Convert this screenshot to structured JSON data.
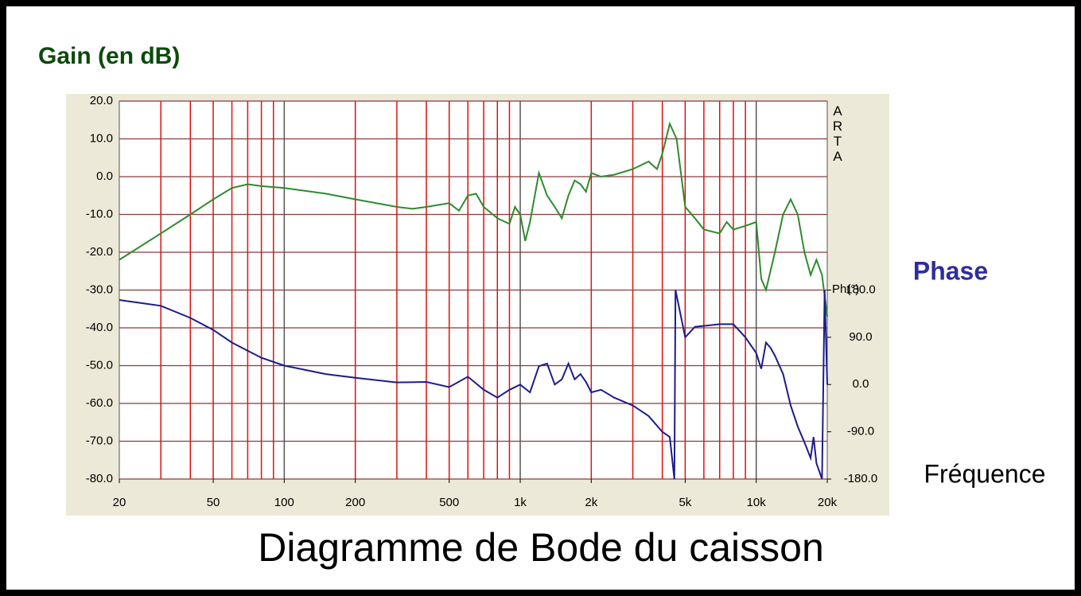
{
  "chart_data": {
    "type": "line",
    "title": "Diagramme de Bode du caisson",
    "xlabel": "Fréquence",
    "y2label": "Ph(°)",
    "annotation": "ARTA",
    "xscale": "log",
    "grid": true,
    "xlim": [
      20,
      20000
    ],
    "ylim": [
      -80,
      20
    ],
    "y2lim": [
      -180,
      540
    ],
    "xticks": [
      20,
      50,
      100,
      200,
      500,
      {
        "value": 1000,
        "label": "1k"
      },
      {
        "value": 2000,
        "label": "2k"
      },
      {
        "value": 5000,
        "label": "5k"
      },
      {
        "value": 10000,
        "label": "10k"
      },
      {
        "value": 20000,
        "label": "20k"
      }
    ],
    "yticks": [
      {
        "value": -80,
        "label": "-80.0"
      },
      {
        "value": -70,
        "label": "-70.0"
      },
      {
        "value": -60,
        "label": "-60.0"
      },
      {
        "value": -50,
        "label": "-50.0"
      },
      {
        "value": -40,
        "label": "-40.0"
      },
      {
        "value": -30,
        "label": "-30.0"
      },
      {
        "value": -20,
        "label": "-20.0"
      },
      {
        "value": -10,
        "label": "-10.0"
      },
      {
        "value": 0,
        "label": "0.0"
      },
      {
        "value": 10,
        "label": "10.0"
      },
      {
        "value": 20,
        "label": "20.0"
      }
    ],
    "y2ticks": [
      {
        "value": -180,
        "label": "-180.0"
      },
      {
        "value": -90,
        "label": "-90.0"
      },
      {
        "value": 0,
        "label": "0.0"
      },
      {
        "value": 90,
        "label": "90.0"
      },
      {
        "value": 180,
        "label": "180.0"
      }
    ],
    "series": [
      {
        "name": "Gain (en dB)",
        "color": "#2e8b2e",
        "label_color": "#0b4a0b",
        "x": [
          20,
          30,
          40,
          50,
          60,
          70,
          80,
          100,
          150,
          200,
          300,
          350,
          400,
          500,
          550,
          600,
          650,
          700,
          800,
          900,
          950,
          1000,
          1050,
          1100,
          1200,
          1300,
          1400,
          1500,
          1600,
          1700,
          1800,
          1900,
          2000,
          2200,
          2500,
          3000,
          3500,
          3800,
          4000,
          4300,
          4600,
          5000,
          5500,
          6000,
          7000,
          7500,
          8000,
          9000,
          10000,
          10500,
          11000,
          12000,
          13000,
          14000,
          15000,
          16000,
          17000,
          18000,
          19000,
          20000
        ],
        "values": [
          -22,
          -15,
          -10,
          -6,
          -3,
          -2,
          -2.5,
          -3,
          -4.5,
          -6,
          -8,
          -8.5,
          -8,
          -7,
          -9,
          -5,
          -4.5,
          -8,
          -11,
          -12.5,
          -8,
          -10,
          -17,
          -12,
          1,
          -5,
          -8,
          -11,
          -5,
          -1,
          -2,
          -4,
          1,
          0,
          0.5,
          2,
          4,
          2,
          6,
          14,
          10,
          -8,
          -11,
          -14,
          -15,
          -12,
          -14,
          -13,
          -12,
          -27,
          -30,
          -20,
          -10,
          -6,
          -10,
          -20,
          -26,
          -22,
          -26,
          -37
        ]
      },
      {
        "name": "Phase",
        "color": "#1c1c8c",
        "label_color": "#2e2e9a",
        "axis": "y2",
        "x": [
          20,
          30,
          40,
          50,
          60,
          80,
          100,
          150,
          200,
          300,
          400,
          500,
          600,
          700,
          800,
          900,
          1000,
          1100,
          1200,
          1300,
          1400,
          1500,
          1600,
          1700,
          1800,
          1900,
          2000,
          2200,
          2500,
          3000,
          3500,
          4000,
          4300,
          4500,
          4550,
          4600,
          5000,
          5500,
          7000,
          8000,
          9000,
          10000,
          10500,
          11000,
          11500,
          12000,
          13000,
          14000,
          15000,
          16000,
          17000,
          17500,
          18000,
          19000,
          19500,
          20000
        ],
        "values": [
          161,
          150,
          127,
          104,
          80,
          51,
          36,
          20,
          13,
          4,
          5,
          -5,
          15,
          -10,
          -25,
          -10,
          0,
          -15,
          35,
          40,
          0,
          10,
          40,
          10,
          20,
          5,
          -15,
          -10,
          -25,
          -40,
          -60,
          -90,
          -100,
          -180,
          180,
          170,
          90,
          110,
          115,
          115,
          90,
          60,
          30,
          80,
          70,
          55,
          20,
          -40,
          -80,
          -110,
          -140,
          -100,
          -150,
          -180,
          180,
          0
        ]
      }
    ]
  }
}
